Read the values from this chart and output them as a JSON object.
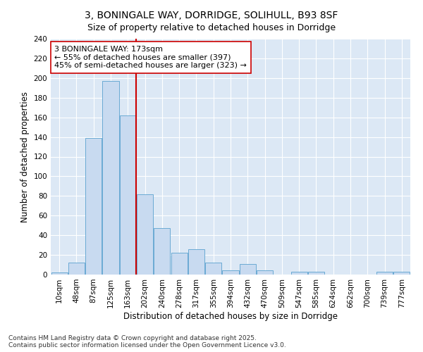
{
  "title_line1": "3, BONINGALE WAY, DORRIDGE, SOLIHULL, B93 8SF",
  "title_line2": "Size of property relative to detached houses in Dorridge",
  "xlabel": "Distribution of detached houses by size in Dorridge",
  "ylabel": "Number of detached properties",
  "bar_color": "#c8daf0",
  "bar_edge_color": "#6aaad4",
  "bg_color": "#dce8f5",
  "grid_color": "#ffffff",
  "fig_bg_color": "#ffffff",
  "categories": [
    "10sqm",
    "48sqm",
    "87sqm",
    "125sqm",
    "163sqm",
    "202sqm",
    "240sqm",
    "278sqm",
    "317sqm",
    "355sqm",
    "394sqm",
    "432sqm",
    "470sqm",
    "509sqm",
    "547sqm",
    "585sqm",
    "624sqm",
    "662sqm",
    "700sqm",
    "739sqm",
    "777sqm"
  ],
  "values": [
    2,
    12,
    139,
    197,
    162,
    82,
    47,
    22,
    26,
    12,
    4,
    11,
    4,
    0,
    3,
    3,
    0,
    0,
    0,
    3,
    3
  ],
  "vline_index": 4,
  "vline_color": "#cc0000",
  "annotation_text": "3 BONINGALE WAY: 173sqm\n← 55% of detached houses are smaller (397)\n45% of semi-detached houses are larger (323) →",
  "annotation_box_color": "#ffffff",
  "annotation_box_edge": "#cc0000",
  "footer_line1": "Contains HM Land Registry data © Crown copyright and database right 2025.",
  "footer_line2": "Contains public sector information licensed under the Open Government Licence v3.0.",
  "ylim": [
    0,
    240
  ],
  "yticks": [
    0,
    20,
    40,
    60,
    80,
    100,
    120,
    140,
    160,
    180,
    200,
    220,
    240
  ],
  "title1_fontsize": 10,
  "title2_fontsize": 9,
  "axis_label_fontsize": 8.5,
  "tick_fontsize": 7.5,
  "annotation_fontsize": 8,
  "footer_fontsize": 6.5
}
